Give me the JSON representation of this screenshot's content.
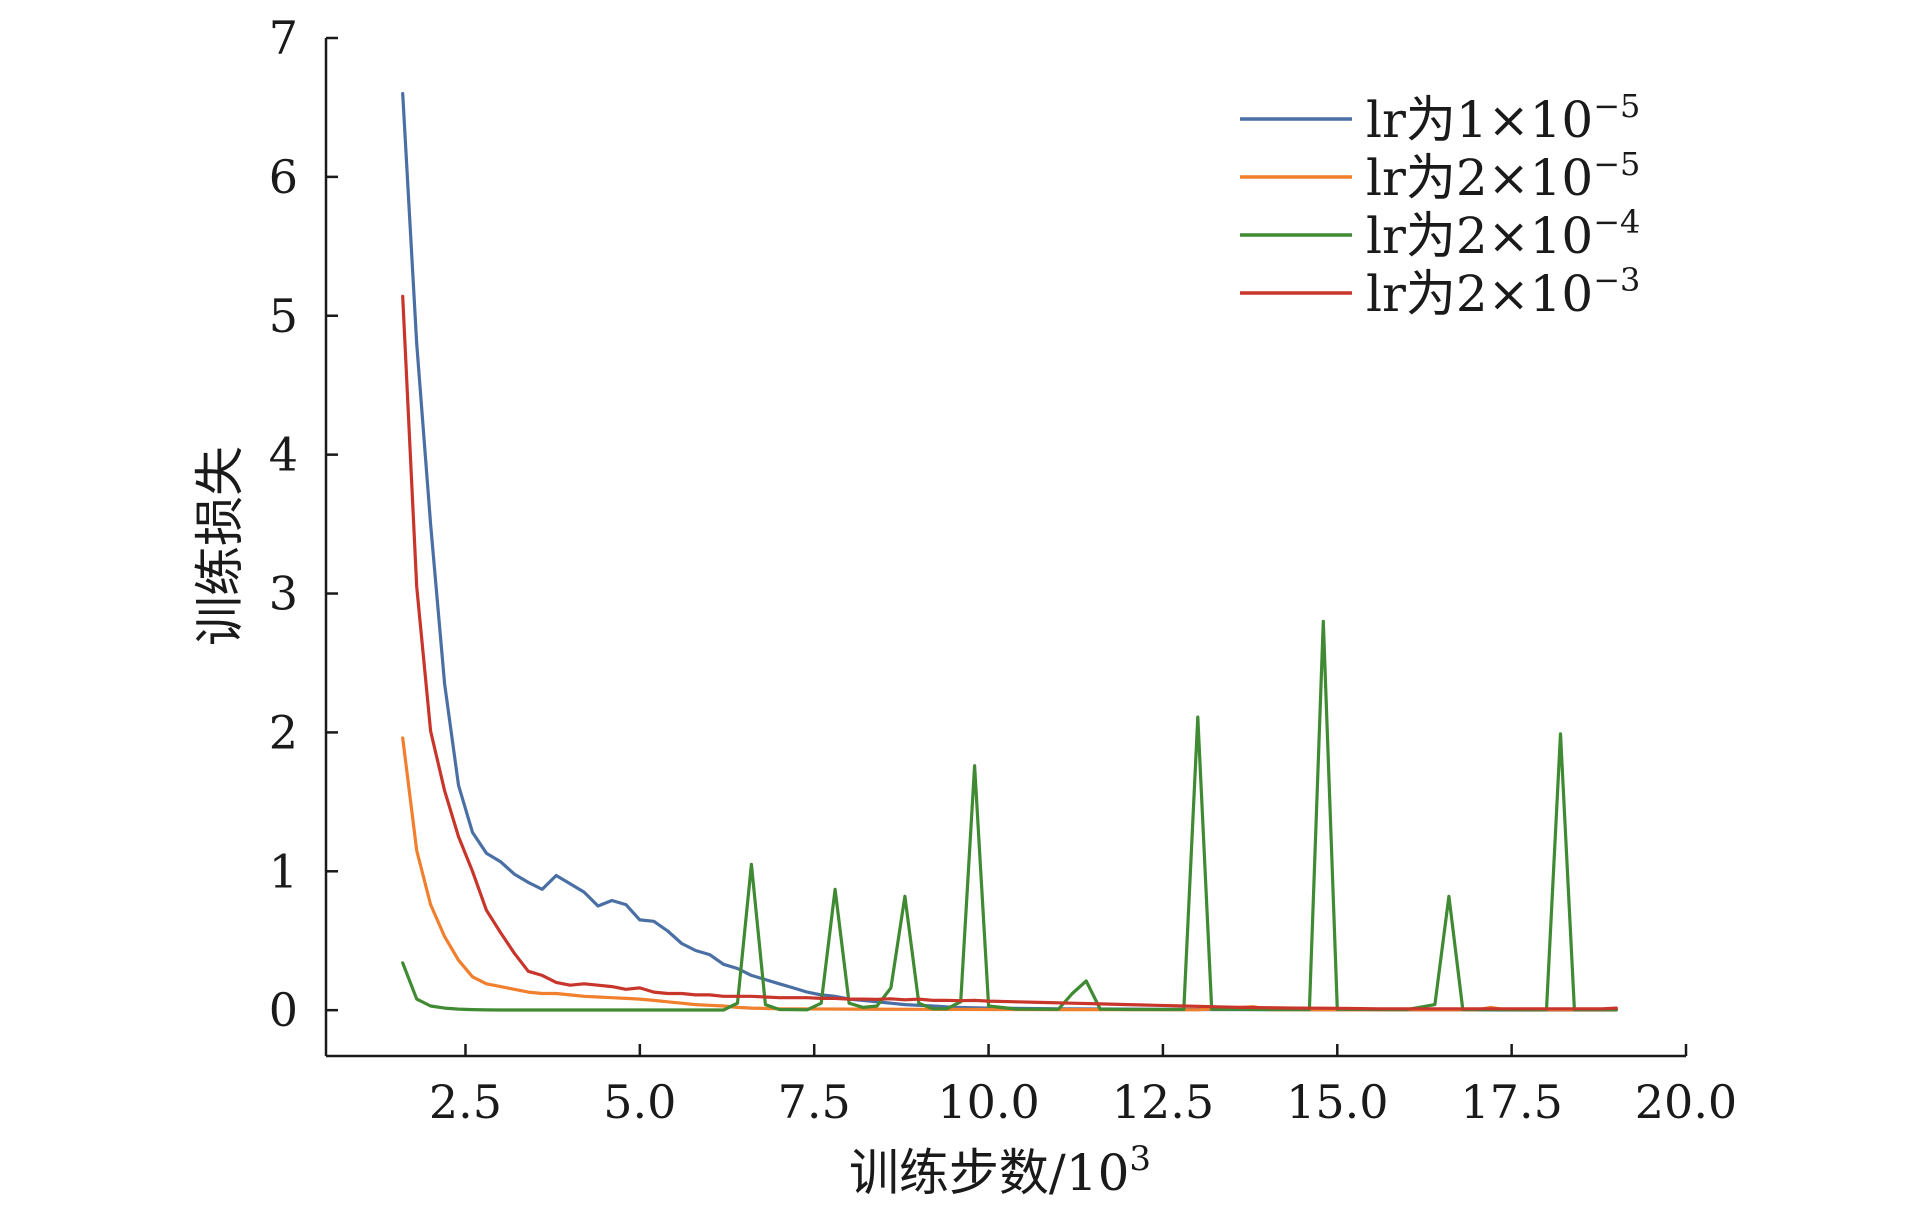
{
  "chart_data": {
    "type": "line",
    "xlabel": "训练步数/10",
    "xlabel_sup": "3",
    "ylabel": "训练损失",
    "xlim": [
      0.5,
      20.0
    ],
    "ylim": [
      -0.33,
      7.0
    ],
    "xticks": [
      2.5,
      5.0,
      7.5,
      10.0,
      12.5,
      15.0,
      17.5,
      20.0
    ],
    "xtick_labels": [
      "2.5",
      "5.0",
      "7.5",
      "10.0",
      "12.5",
      "15.0",
      "17.5",
      "20.0"
    ],
    "yticks": [
      0,
      1,
      2,
      3,
      4,
      5,
      6,
      7
    ],
    "ytick_labels": [
      "0",
      "1",
      "2",
      "3",
      "4",
      "5",
      "6",
      "7"
    ],
    "grid": false,
    "legend_position": "top-right",
    "series": [
      {
        "name": "lr为1×10-5",
        "legend_text": "lr为1×10",
        "legend_sup": "−5",
        "color": "#4a6fa5",
        "points": [
          [
            1.6,
            6.6
          ],
          [
            1.8,
            4.8
          ],
          [
            2.0,
            3.5
          ],
          [
            2.2,
            2.35
          ],
          [
            2.4,
            1.62
          ],
          [
            2.6,
            1.28
          ],
          [
            2.8,
            1.13
          ],
          [
            3.0,
            1.07
          ],
          [
            3.2,
            0.98
          ],
          [
            3.4,
            0.92
          ],
          [
            3.6,
            0.87
          ],
          [
            3.8,
            0.97
          ],
          [
            4.0,
            0.91
          ],
          [
            4.2,
            0.85
          ],
          [
            4.4,
            0.75
          ],
          [
            4.6,
            0.79
          ],
          [
            4.8,
            0.76
          ],
          [
            5.0,
            0.65
          ],
          [
            5.2,
            0.64
          ],
          [
            5.4,
            0.57
          ],
          [
            5.6,
            0.48
          ],
          [
            5.8,
            0.43
          ],
          [
            6.0,
            0.4
          ],
          [
            6.2,
            0.33
          ],
          [
            6.4,
            0.3
          ],
          [
            6.6,
            0.25
          ],
          [
            6.8,
            0.22
          ],
          [
            7.0,
            0.19
          ],
          [
            7.2,
            0.16
          ],
          [
            7.4,
            0.13
          ],
          [
            7.6,
            0.11
          ],
          [
            7.8,
            0.1
          ],
          [
            8.0,
            0.08
          ],
          [
            8.2,
            0.07
          ],
          [
            8.4,
            0.06
          ],
          [
            8.6,
            0.05
          ],
          [
            8.8,
            0.04
          ],
          [
            9.0,
            0.035
          ],
          [
            9.2,
            0.03
          ],
          [
            9.5,
            0.02
          ],
          [
            10.0,
            0.015
          ],
          [
            11.0,
            0.01
          ],
          [
            12.0,
            0.008
          ],
          [
            13.0,
            0.005
          ],
          [
            14.0,
            0.004
          ],
          [
            15.0,
            0.003
          ],
          [
            16.0,
            0.002
          ],
          [
            17.0,
            0.002
          ],
          [
            18.0,
            0.001
          ],
          [
            19.0,
            0.001
          ]
        ]
      },
      {
        "name": "lr为2×10-5",
        "legend_text": "lr为2×10",
        "legend_sup": "−5",
        "color": "#f07f2e",
        "points": [
          [
            1.6,
            1.96
          ],
          [
            1.8,
            1.15
          ],
          [
            2.0,
            0.76
          ],
          [
            2.2,
            0.53
          ],
          [
            2.4,
            0.36
          ],
          [
            2.6,
            0.24
          ],
          [
            2.8,
            0.19
          ],
          [
            3.0,
            0.17
          ],
          [
            3.2,
            0.15
          ],
          [
            3.4,
            0.13
          ],
          [
            3.6,
            0.12
          ],
          [
            3.8,
            0.12
          ],
          [
            4.0,
            0.11
          ],
          [
            4.2,
            0.1
          ],
          [
            4.4,
            0.095
          ],
          [
            4.6,
            0.09
          ],
          [
            4.8,
            0.085
          ],
          [
            5.0,
            0.08
          ],
          [
            5.2,
            0.07
          ],
          [
            5.4,
            0.06
          ],
          [
            5.6,
            0.05
          ],
          [
            5.8,
            0.04
          ],
          [
            6.0,
            0.035
          ],
          [
            6.2,
            0.03
          ],
          [
            6.4,
            0.02
          ],
          [
            6.6,
            0.015
          ],
          [
            7.0,
            0.01
          ],
          [
            8.0,
            0.008
          ],
          [
            9.0,
            0.006
          ],
          [
            10.0,
            0.005
          ],
          [
            11.0,
            0.004
          ],
          [
            12.0,
            0.004
          ],
          [
            13.0,
            0.003
          ],
          [
            13.8,
            0.025
          ],
          [
            14.0,
            0.004
          ],
          [
            15.0,
            0.003
          ],
          [
            16.0,
            0.003
          ],
          [
            17.0,
            0.003
          ],
          [
            17.2,
            0.02
          ],
          [
            17.4,
            0.004
          ],
          [
            18.0,
            0.003
          ],
          [
            19.0,
            0.003
          ]
        ]
      },
      {
        "name": "lr为2×10-4",
        "legend_text": "lr为2×10",
        "legend_sup": "−4",
        "color": "#3f8a32",
        "points": [
          [
            1.6,
            0.34
          ],
          [
            1.8,
            0.08
          ],
          [
            2.0,
            0.03
          ],
          [
            2.2,
            0.015
          ],
          [
            2.4,
            0.008
          ],
          [
            2.6,
            0.004
          ],
          [
            2.8,
            0.002
          ],
          [
            3.0,
            0.001
          ],
          [
            4.0,
            0.001
          ],
          [
            5.0,
            0.001
          ],
          [
            6.0,
            0.001
          ],
          [
            6.2,
            0.001
          ],
          [
            6.4,
            0.05
          ],
          [
            6.6,
            1.05
          ],
          [
            6.8,
            0.04
          ],
          [
            7.0,
            0.005
          ],
          [
            7.4,
            0.003
          ],
          [
            7.6,
            0.05
          ],
          [
            7.8,
            0.87
          ],
          [
            8.0,
            0.05
          ],
          [
            8.2,
            0.02
          ],
          [
            8.4,
            0.03
          ],
          [
            8.6,
            0.16
          ],
          [
            8.8,
            0.82
          ],
          [
            9.0,
            0.05
          ],
          [
            9.2,
            0.01
          ],
          [
            9.4,
            0.01
          ],
          [
            9.6,
            0.06
          ],
          [
            9.8,
            1.76
          ],
          [
            10.0,
            0.03
          ],
          [
            10.4,
            0.008
          ],
          [
            11.0,
            0.006
          ],
          [
            11.2,
            0.12
          ],
          [
            11.4,
            0.21
          ],
          [
            11.6,
            0.008
          ],
          [
            12.0,
            0.005
          ],
          [
            12.8,
            0.005
          ],
          [
            13.0,
            2.11
          ],
          [
            13.2,
            0.008
          ],
          [
            14.0,
            0.005
          ],
          [
            14.6,
            0.005
          ],
          [
            14.8,
            2.8
          ],
          [
            15.0,
            0.006
          ],
          [
            16.0,
            0.004
          ],
          [
            16.4,
            0.04
          ],
          [
            16.6,
            0.82
          ],
          [
            16.8,
            0.005
          ],
          [
            17.0,
            0.004
          ],
          [
            18.0,
            0.004
          ],
          [
            18.2,
            1.99
          ],
          [
            18.4,
            0.004
          ],
          [
            19.0,
            0.004
          ]
        ]
      },
      {
        "name": "lr为2×10-3",
        "legend_text": "lr为2×10",
        "legend_sup": "−3",
        "color": "#c8362b",
        "points": [
          [
            1.6,
            5.14
          ],
          [
            1.8,
            3.05
          ],
          [
            2.0,
            2.01
          ],
          [
            2.2,
            1.58
          ],
          [
            2.4,
            1.25
          ],
          [
            2.6,
            1.0
          ],
          [
            2.8,
            0.72
          ],
          [
            3.0,
            0.56
          ],
          [
            3.2,
            0.41
          ],
          [
            3.4,
            0.28
          ],
          [
            3.6,
            0.25
          ],
          [
            3.8,
            0.2
          ],
          [
            4.0,
            0.18
          ],
          [
            4.2,
            0.19
          ],
          [
            4.4,
            0.18
          ],
          [
            4.6,
            0.17
          ],
          [
            4.8,
            0.15
          ],
          [
            5.0,
            0.16
          ],
          [
            5.2,
            0.13
          ],
          [
            5.4,
            0.12
          ],
          [
            5.6,
            0.12
          ],
          [
            5.8,
            0.11
          ],
          [
            6.0,
            0.11
          ],
          [
            6.2,
            0.1
          ],
          [
            6.4,
            0.1
          ],
          [
            6.6,
            0.1
          ],
          [
            6.8,
            0.095
          ],
          [
            7.0,
            0.09
          ],
          [
            7.2,
            0.09
          ],
          [
            7.4,
            0.09
          ],
          [
            7.6,
            0.085
          ],
          [
            7.8,
            0.085
          ],
          [
            8.0,
            0.08
          ],
          [
            8.2,
            0.08
          ],
          [
            8.4,
            0.078
          ],
          [
            8.6,
            0.082
          ],
          [
            8.8,
            0.075
          ],
          [
            9.0,
            0.08
          ],
          [
            9.2,
            0.07
          ],
          [
            9.4,
            0.07
          ],
          [
            9.6,
            0.068
          ],
          [
            9.8,
            0.07
          ],
          [
            10.0,
            0.065
          ],
          [
            10.4,
            0.06
          ],
          [
            10.8,
            0.055
          ],
          [
            11.2,
            0.05
          ],
          [
            11.6,
            0.045
          ],
          [
            12.0,
            0.04
          ],
          [
            12.4,
            0.035
          ],
          [
            12.8,
            0.03
          ],
          [
            13.2,
            0.025
          ],
          [
            13.6,
            0.02
          ],
          [
            14.0,
            0.018
          ],
          [
            14.4,
            0.015
          ],
          [
            14.8,
            0.014
          ],
          [
            15.2,
            0.012
          ],
          [
            15.6,
            0.01
          ],
          [
            16.0,
            0.01
          ],
          [
            16.4,
            0.01
          ],
          [
            16.8,
            0.01
          ],
          [
            17.2,
            0.01
          ],
          [
            17.6,
            0.01
          ],
          [
            18.0,
            0.01
          ],
          [
            18.4,
            0.01
          ],
          [
            18.8,
            0.01
          ],
          [
            19.0,
            0.015
          ]
        ]
      }
    ]
  }
}
